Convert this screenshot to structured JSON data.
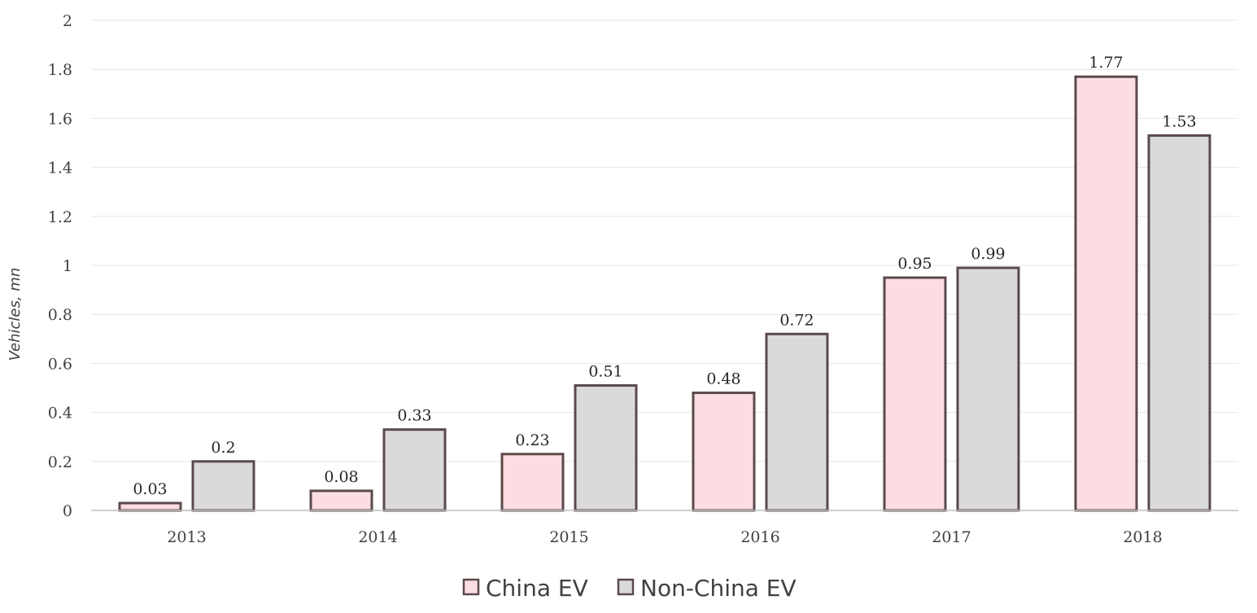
{
  "chart_data": {
    "type": "bar",
    "title": "",
    "xlabel": "",
    "ylabel": "Vehicles, mn",
    "ylim": [
      0,
      2
    ],
    "yticks": [
      "0",
      "0.2",
      "0.4",
      "0.6",
      "0.8",
      "1",
      "1.2",
      "1.4",
      "1.6",
      "1.8",
      "2"
    ],
    "categories": [
      "2013",
      "2014",
      "2015",
      "2016",
      "2017",
      "2018"
    ],
    "series": [
      {
        "name": "China EV",
        "values": [
          0.03,
          0.08,
          0.23,
          0.48,
          0.95,
          1.77
        ],
        "labels": [
          "0.03",
          "0.08",
          "0.23",
          "0.48",
          "0.95",
          "1.77"
        ],
        "color": "#fddde4"
      },
      {
        "name": "Non-China EV",
        "values": [
          0.2,
          0.33,
          0.51,
          0.72,
          0.99,
          1.53
        ],
        "labels": [
          "0.2",
          "0.33",
          "0.51",
          "0.72",
          "0.99",
          "1.53"
        ],
        "color": "#dadada"
      }
    ],
    "bar_outline_color": "#5b4a4a",
    "grid": true,
    "legend_position": "bottom"
  }
}
